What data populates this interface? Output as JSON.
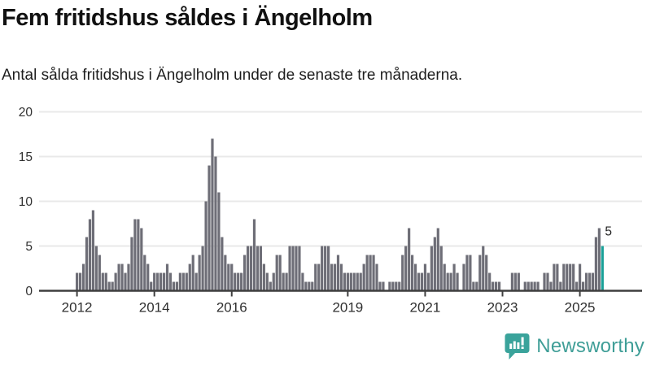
{
  "header": {
    "title": "Fem fritidshus såldes i Ängelholm",
    "subtitle": "Antal sålda fritidshus i Ängelholm under de senaste tre månaderna."
  },
  "branding": {
    "logo_text": "Newsworthy"
  },
  "colors": {
    "bar": "#6e6e77",
    "highlight": "#1aa098",
    "gridline": "#e9e9e9",
    "axis": "#3f3f3f",
    "tick_text": "#303030",
    "label_text": "#222222",
    "brand_teal": "#3f9e97"
  },
  "chart_data": {
    "type": "bar",
    "title": "Fem fritidshus såldes i Ängelholm",
    "subtitle": "Antal sålda fritidshus i Ängelholm under de senaste tre månaderna.",
    "x_unit": "month",
    "start_month": "2012-01",
    "end_month": "2025-08",
    "values": [
      2,
      2,
      3,
      6,
      8,
      9,
      5,
      4,
      2,
      2,
      1,
      1,
      2,
      3,
      3,
      2,
      3,
      6,
      8,
      8,
      7,
      4,
      3,
      1,
      2,
      2,
      2,
      2,
      3,
      2,
      1,
      1,
      2,
      2,
      2,
      3,
      4,
      2,
      4,
      5,
      10,
      14,
      17,
      15,
      11,
      6,
      4,
      3,
      3,
      2,
      2,
      2,
      4,
      5,
      5,
      8,
      5,
      5,
      3,
      2,
      1,
      2,
      4,
      4,
      2,
      2,
      5,
      5,
      5,
      5,
      2,
      1,
      1,
      1,
      3,
      3,
      5,
      5,
      5,
      3,
      3,
      4,
      3,
      2,
      2,
      2,
      2,
      2,
      2,
      3,
      4,
      4,
      4,
      3,
      1,
      1,
      0,
      1,
      1,
      1,
      1,
      4,
      5,
      7,
      4,
      3,
      2,
      2,
      3,
      2,
      5,
      6,
      7,
      5,
      3,
      2,
      2,
      3,
      2,
      0,
      3,
      4,
      4,
      1,
      1,
      4,
      5,
      4,
      2,
      1,
      1,
      1,
      0,
      0,
      0,
      2,
      2,
      2,
      0,
      1,
      1,
      1,
      1,
      1,
      0,
      2,
      2,
      1,
      3,
      3,
      1,
      3,
      3,
      3,
      3,
      1,
      3,
      1,
      2,
      2,
      2,
      6,
      7,
      5
    ],
    "highlight": {
      "index": 163,
      "value": 5,
      "label": "5"
    },
    "x_tick_labels": [
      "2012",
      "2014",
      "2016",
      "2019",
      "2021",
      "2023",
      "2025"
    ],
    "x_tick_month_index": [
      0,
      24,
      48,
      84,
      108,
      132,
      156
    ],
    "y_ticks": [
      0,
      5,
      10,
      15,
      20
    ],
    "ylim": [
      0,
      20
    ],
    "grid": true,
    "legend": "none"
  }
}
